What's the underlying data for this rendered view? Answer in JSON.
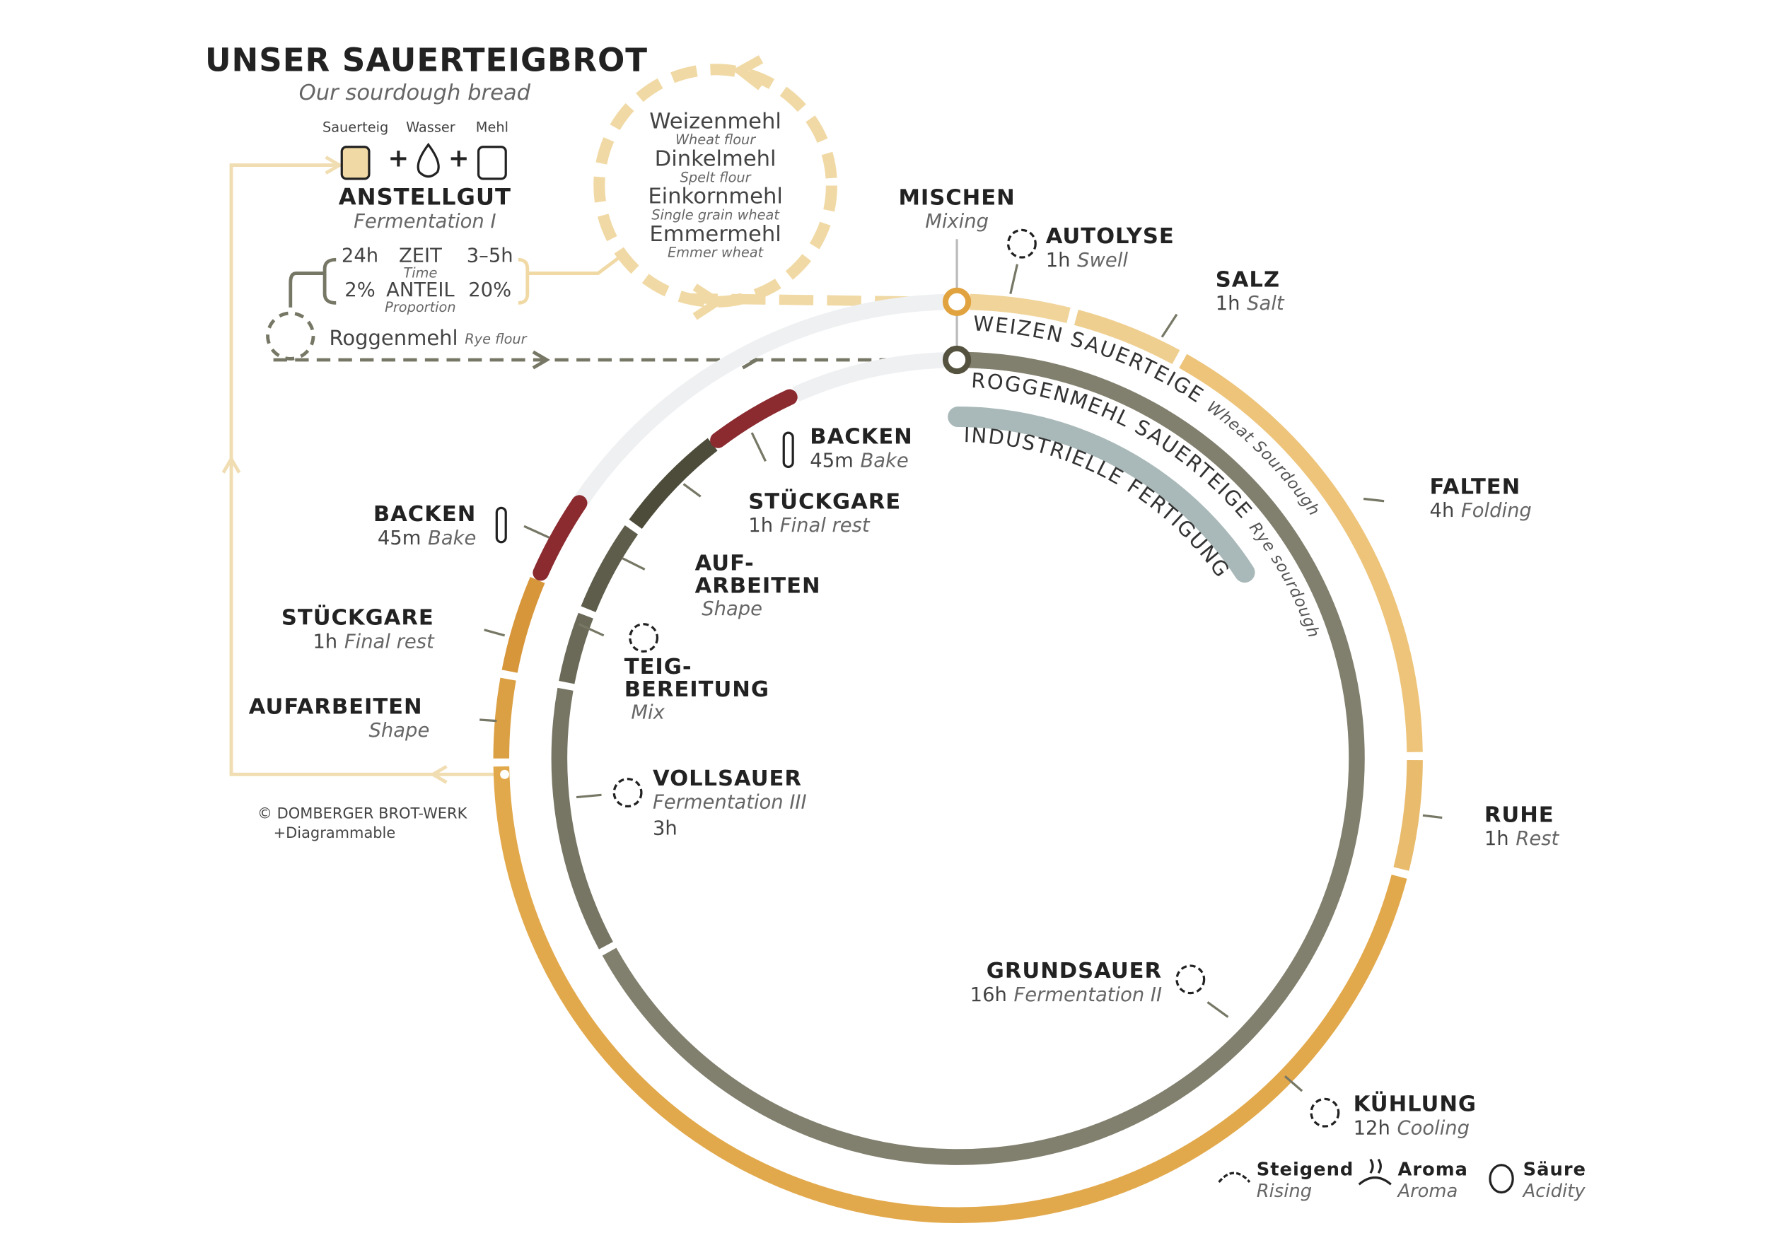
{
  "header": {
    "title": "UNSER SAUERTEIGBROT",
    "subtitle": "Our sourdough bread"
  },
  "anstellgut": {
    "ingredients": [
      "Sauerteig",
      "Wasser",
      "Mehl"
    ],
    "title": "ANSTELLGUT",
    "subtitle": "Fermentation I",
    "time": {
      "min": "24h",
      "label": "ZEIT",
      "translation": "Time",
      "max": "3–5h"
    },
    "share": {
      "min": "2%",
      "label": "ANTEIL",
      "translation": "Proportion",
      "max": "20%"
    }
  },
  "flours": [
    {
      "name": "Weizenmehl",
      "translation": "Wheat flour"
    },
    {
      "name": "Dinkelmehl",
      "translation": "Spelt flour"
    },
    {
      "name": "Einkornmehl",
      "translation": "Single grain wheat"
    },
    {
      "name": "Emmermehl",
      "translation": "Emmer wheat"
    }
  ],
  "rye_flour": {
    "name": "Roggenmehl",
    "translation": "Rye flour"
  },
  "mixing": {
    "title": "MISCHEN",
    "subtitle": "Mixing"
  },
  "arc_labels": [
    {
      "title": "WEIZEN SAUERTEIGE",
      "subtitle": "Wheat Sourdough"
    },
    {
      "title": "ROGGENMEHL SAUERTEIGE",
      "subtitle": "Rye sourdough"
    },
    {
      "title": "INDUSTRIELLE FERTIGUNG"
    }
  ],
  "wheat_stages": [
    {
      "title": "AUTOLYSE",
      "duration": "1h",
      "subtitle": "Swell"
    },
    {
      "title": "SALZ",
      "duration": "1h",
      "subtitle": "Salt"
    },
    {
      "title": "FALTEN",
      "duration": "4h",
      "subtitle": "Folding"
    },
    {
      "title": "RUHE",
      "duration": "1h",
      "subtitle": "Rest"
    },
    {
      "title": "KÜHLUNG",
      "duration": "12h",
      "subtitle": "Cooling"
    },
    {
      "title": "AUFARBEITEN",
      "subtitle": "Shape"
    },
    {
      "title": "STÜCKGARE",
      "duration": "1h",
      "subtitle": "Final rest"
    },
    {
      "title": "BACKEN",
      "duration": "45m",
      "subtitle": "Bake"
    }
  ],
  "rye_stages": [
    {
      "title": "BACKEN",
      "duration": "45m",
      "subtitle": "Bake"
    },
    {
      "title": "STÜCKGARE",
      "duration": "1h",
      "subtitle": "Final rest"
    },
    {
      "title_lines": [
        "AUF-",
        "ARBEITEN"
      ],
      "subtitle": "Shape"
    },
    {
      "title_lines": [
        "TEIG-",
        "BEREITUNG"
      ],
      "subtitle": "Mix"
    },
    {
      "title": "VOLLSAUER",
      "subtitle": "Fermentation III",
      "duration": "3h"
    },
    {
      "title": "GRUNDSAUER",
      "duration": "16h",
      "subtitle": "Fermentation II"
    }
  ],
  "legend": [
    {
      "name": "Steigend",
      "translation": "Rising"
    },
    {
      "name": "Aroma",
      "translation": "Aroma"
    },
    {
      "name": "Säure",
      "translation": "Acidity"
    }
  ],
  "credit": [
    "© DOMBERGER BROT-WERK",
    "+Diagrammable"
  ]
}
